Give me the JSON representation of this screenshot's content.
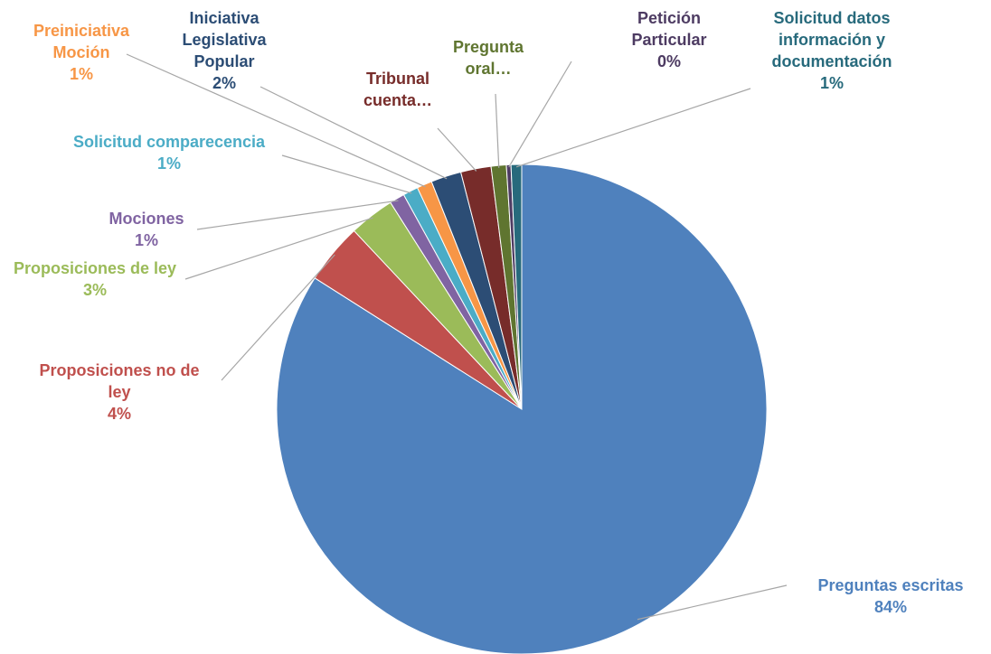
{
  "chart_data": {
    "type": "pie",
    "categories": [
      "Preguntas escritas",
      "Proposiciones no de ley",
      "Proposiciones de ley",
      "Mociones",
      "Solicitud comparecencia",
      "Preiniciativa Moción",
      "Iniciativa Legislativa Popular",
      "Tribunal cuenta…",
      "Pregunta oral…",
      "Petición Particular",
      "Solicitud datos información y documentación"
    ],
    "values": [
      84,
      4,
      3,
      1,
      1,
      1,
      2,
      2,
      1,
      0.3,
      0.7
    ],
    "value_labels": [
      "84%",
      "4%",
      "3%",
      "1%",
      "1%",
      "1%",
      "2%",
      null,
      null,
      "0%",
      "1%"
    ],
    "colors": [
      "#4f81bd",
      "#c0504d",
      "#9bbb59",
      "#8064a2",
      "#4bacc6",
      "#f79646",
      "#2c4d75",
      "#772c2a",
      "#5f7530",
      "#4d3b62",
      "#276a7c"
    ]
  }
}
